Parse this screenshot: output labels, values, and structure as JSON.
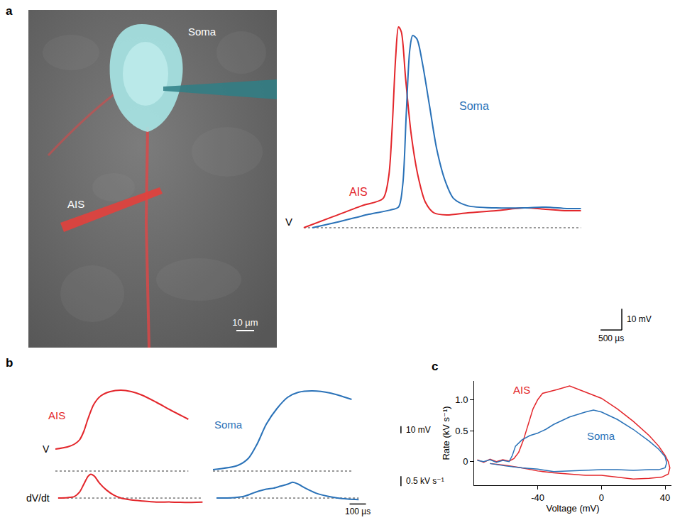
{
  "chart_data": [
    {
      "type": "image",
      "panel_label": "a",
      "labels": {
        "soma": "Soma",
        "ais": "AIS"
      },
      "scale_bar": {
        "label": "10 µm",
        "value": 10
      }
    },
    {
      "type": "line",
      "tick_labels": false,
      "xlim": [
        0,
        8700
      ],
      "ylim": [
        -53,
        97
      ],
      "baseline": 0,
      "y_label": "V",
      "series": [
        {
          "name": "AIS",
          "color": "#e3262b",
          "x": [
            133,
            833,
            1500,
            2000,
            2133,
            2217,
            2300,
            2367,
            2433,
            2533,
            2667,
            2833,
            3000,
            3200,
            3500,
            4000,
            4667,
            5333,
            5833,
            6333,
            6667
          ],
          "values": [
            0,
            5.3,
            10.3,
            13.7,
            23.7,
            47,
            80.3,
            94.3,
            92,
            70.3,
            43.7,
            23.7,
            12,
            7,
            6,
            7,
            8,
            9.3,
            8.7,
            8,
            8
          ]
        },
        {
          "name": "Soma",
          "color": "#2a72b8",
          "x": [
            333,
            1000,
            1667,
            2167,
            2367,
            2467,
            2550,
            2633,
            2700,
            2800,
            2933,
            3100,
            3267,
            3467,
            3667,
            4000,
            4667,
            5333,
            5833,
            6333,
            6667
          ],
          "values": [
            0,
            3,
            6.3,
            8.3,
            9.7,
            20.3,
            53.7,
            83.7,
            90.3,
            88.7,
            77,
            57,
            37,
            22,
            13.7,
            10.3,
            9.3,
            9.3,
            9.7,
            9,
            9
          ]
        }
      ],
      "scale_bars": [
        {
          "label": "10 mV",
          "value": 10,
          "axis": "y"
        },
        {
          "label": "500 µs",
          "value": 500,
          "axis": "x"
        }
      ]
    },
    {
      "type": "line",
      "panel_label": "b",
      "tick_labels": false,
      "baseline": 0,
      "rows": [
        {
          "label": "V",
          "ylim": [
            -4,
            126
          ]
        },
        {
          "label": "dV/dt",
          "ylim": [
            -0.5,
            1.4
          ]
        }
      ],
      "columns": [
        {
          "name": "AIS",
          "color": "#e3262b",
          "xlim": [
            0,
            920
          ]
        },
        {
          "name": "Soma",
          "color": "#2a72b8",
          "xlim": [
            0,
            1215
          ]
        }
      ],
      "series": [
        {
          "name": "AIS",
          "row": "V",
          "x": [
            0,
            74,
            117,
            148,
            174,
            200,
            235,
            278,
            335,
            400,
            465,
            530,
            617,
            704,
            813
          ],
          "values": [
            31,
            34,
            38,
            44,
            56,
            74,
            94,
            106,
            112,
            114,
            112,
            107,
            97,
            86,
            73
          ]
        },
        {
          "name": "Soma",
          "row": "V",
          "x": [
            0,
            152,
            217,
            270,
            326,
            391,
            457,
            522,
            609,
            717,
            848
          ],
          "values": [
            2,
            8,
            18,
            38,
            66,
            88,
            104,
            111,
            113,
            110,
            101
          ]
        },
        {
          "name": "AIS",
          "row": "dV/dt",
          "x": [
            17,
            74,
            117,
            148,
            174,
            200,
            217,
            239,
            270,
            313,
            357,
            400,
            465,
            530,
            617,
            704,
            791,
            900
          ],
          "values": [
            0,
            0.02,
            0.08,
            0.3,
            0.7,
            1.1,
            1.2,
            1.1,
            0.75,
            0.4,
            0.15,
            0,
            -0.1,
            -0.15,
            -0.2,
            -0.2,
            -0.22,
            -0.2
          ]
        },
        {
          "name": "Soma",
          "row": "dV/dt",
          "x": [
            22,
            130,
            196,
            261,
            326,
            370,
            413,
            457,
            487,
            522,
            565,
            630,
            696,
            761,
            826,
            891
          ],
          "values": [
            0,
            0.02,
            0.1,
            0.3,
            0.45,
            0.5,
            0.6,
            0.7,
            0.8,
            0.7,
            0.5,
            0.25,
            0.1,
            0,
            -0.05,
            -0.08
          ]
        }
      ],
      "scale_bars": [
        {
          "label": "10 mV",
          "value": 10,
          "row": "V"
        },
        {
          "label": "0.5 kV s⁻¹",
          "value": 0.5,
          "row": "dV/dt"
        },
        {
          "label": "100 µs",
          "value": 100,
          "axis": "x"
        }
      ]
    },
    {
      "type": "line",
      "panel_label": "c",
      "x_label": "Voltage (mV)",
      "y_label": "Rate (kV s⁻¹)",
      "xlim": [
        -80,
        44
      ],
      "ylim": [
        -0.38,
        1.3
      ],
      "xticks": [
        -40,
        0,
        40
      ],
      "yticks": [
        0,
        0.5,
        {
          "value": 1,
          "label": "1.0"
        }
      ],
      "grid": false,
      "series": [
        {
          "name": "AIS",
          "color": "#e3262b",
          "x": [
            -78,
            -74,
            -70,
            -66,
            -62,
            -58,
            -55,
            -52,
            -49,
            -46,
            -43,
            -40,
            -37,
            -28,
            -20,
            -10,
            0,
            10,
            20,
            30,
            36,
            40,
            42,
            43,
            42,
            38,
            30,
            20,
            10,
            0,
            -10,
            -20,
            -30,
            -40,
            -50,
            -60,
            -70
          ],
          "values": [
            0.03,
            -0.01,
            0.04,
            0.0,
            0.03,
            0.01,
            0.05,
            0.15,
            0.35,
            0.6,
            0.85,
            1.0,
            1.1,
            1.16,
            1.22,
            1.12,
            1.02,
            0.85,
            0.65,
            0.42,
            0.25,
            0.1,
            0.0,
            -0.1,
            -0.2,
            -0.25,
            -0.27,
            -0.28,
            -0.25,
            -0.22,
            -0.22,
            -0.2,
            -0.18,
            -0.15,
            -0.1,
            -0.06,
            -0.03
          ]
        },
        {
          "name": "Soma",
          "color": "#2a72b8",
          "x": [
            -78,
            -74,
            -70,
            -66,
            -62,
            -58,
            -56,
            -54,
            -50,
            -45,
            -40,
            -35,
            -30,
            -20,
            -10,
            -5,
            0,
            10,
            20,
            30,
            36,
            40,
            41,
            40,
            36,
            30,
            20,
            10,
            0,
            -10,
            -20,
            -30,
            -40,
            -50,
            -60,
            -70
          ],
          "values": [
            0.02,
            0.0,
            0.03,
            -0.01,
            0.02,
            0.0,
            0.1,
            0.25,
            0.35,
            0.42,
            0.46,
            0.52,
            0.6,
            0.72,
            0.8,
            0.83,
            0.8,
            0.68,
            0.52,
            0.33,
            0.2,
            0.08,
            -0.02,
            -0.1,
            -0.13,
            -0.13,
            -0.14,
            -0.13,
            -0.13,
            -0.14,
            -0.15,
            -0.16,
            -0.12,
            -0.1,
            -0.07,
            -0.03
          ]
        }
      ]
    }
  ]
}
